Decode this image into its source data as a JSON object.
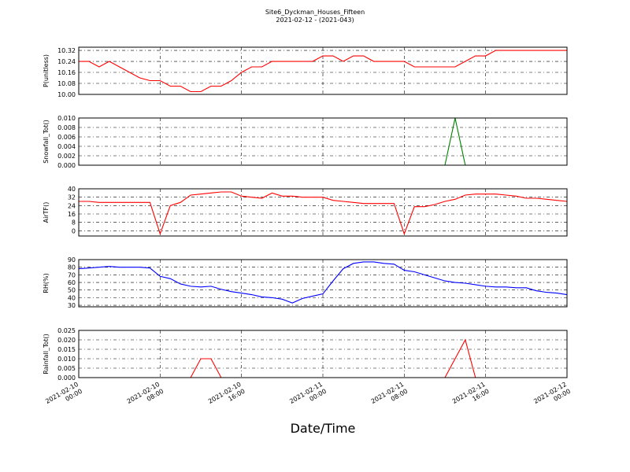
{
  "chart_data": {
    "type": "line",
    "title": "Site6_Dyckman_Houses_Fifteen",
    "subtitle": "2021-02-12 - (2021-043)",
    "xlabel": "Date/Time",
    "grid": true,
    "xlim": [
      "2021-02-10 00:00",
      "2021-02-12 00:00"
    ],
    "xticks": [
      {
        "value": "2021-02-10 00:00",
        "label": "2021-02-10 00:00"
      },
      {
        "value": "2021-02-10 08:00",
        "label": "2021-02-10 08:00"
      },
      {
        "value": "2021-02-10 16:00",
        "label": "2021-02-10 16:00"
      },
      {
        "value": "2021-02-11 00:00",
        "label": "2021-02-11 00:00"
      },
      {
        "value": "2021-02-11 08:00",
        "label": "2021-02-11 08:00"
      },
      {
        "value": "2021-02-11 16:00",
        "label": "2021-02-11 16:00"
      },
      {
        "value": "2021-02-12 00:00",
        "label": "2021-02-12 00:00"
      }
    ],
    "x": [
      "2021-02-10 00:00",
      "2021-02-10 01:00",
      "2021-02-10 02:00",
      "2021-02-10 03:00",
      "2021-02-10 04:00",
      "2021-02-10 05:00",
      "2021-02-10 06:00",
      "2021-02-10 07:00",
      "2021-02-10 08:00",
      "2021-02-10 09:00",
      "2021-02-10 10:00",
      "2021-02-10 11:00",
      "2021-02-10 12:00",
      "2021-02-10 13:00",
      "2021-02-10 14:00",
      "2021-02-10 15:00",
      "2021-02-10 16:00",
      "2021-02-10 17:00",
      "2021-02-10 18:00",
      "2021-02-10 19:00",
      "2021-02-10 20:00",
      "2021-02-10 21:00",
      "2021-02-10 22:00",
      "2021-02-10 23:00",
      "2021-02-11 00:00",
      "2021-02-11 01:00",
      "2021-02-11 02:00",
      "2021-02-11 03:00",
      "2021-02-11 04:00",
      "2021-02-11 05:00",
      "2021-02-11 06:00",
      "2021-02-11 07:00",
      "2021-02-11 08:00",
      "2021-02-11 09:00",
      "2021-02-11 10:00",
      "2021-02-11 11:00",
      "2021-02-11 12:00",
      "2021-02-11 13:00",
      "2021-02-11 14:00",
      "2021-02-11 15:00",
      "2021-02-11 16:00",
      "2021-02-11 17:00",
      "2021-02-11 18:00",
      "2021-02-11 19:00",
      "2021-02-11 20:00",
      "2021-02-11 21:00",
      "2021-02-11 22:00",
      "2021-02-11 23:00",
      "2021-02-12 00:00"
    ],
    "panels": [
      {
        "ylabel": "P(unitless)",
        "ylim": [
          10.0,
          10.343
        ],
        "yticks": [
          {
            "value": 10.0,
            "label": "10.00"
          },
          {
            "value": 10.08,
            "label": "10.08"
          },
          {
            "value": 10.16,
            "label": "10.16"
          },
          {
            "value": 10.24,
            "label": "10.24"
          },
          {
            "value": 10.32,
            "label": "10.32"
          }
        ],
        "series": [
          {
            "color": "#ff0000",
            "values": [
              10.24,
              10.24,
              10.2,
              10.24,
              10.2,
              10.16,
              10.12,
              10.1,
              10.1,
              10.06,
              10.06,
              10.02,
              10.02,
              10.06,
              10.06,
              10.1,
              10.16,
              10.2,
              10.2,
              10.24,
              10.24,
              10.24,
              10.24,
              10.24,
              10.28,
              10.28,
              10.24,
              10.28,
              10.28,
              10.24,
              10.24,
              10.24,
              10.24,
              10.2,
              10.2,
              10.2,
              10.2,
              10.2,
              10.24,
              10.28,
              10.28,
              10.32,
              10.32,
              10.32,
              10.32,
              10.32,
              10.32,
              10.32,
              10.32
            ]
          }
        ]
      },
      {
        "ylabel": "Snowfall_Tot()",
        "ylim": [
          0,
          0.01
        ],
        "yticks": [
          {
            "value": 0,
            "label": "0.000"
          },
          {
            "value": 0.002,
            "label": "0.002"
          },
          {
            "value": 0.004,
            "label": "0.004"
          },
          {
            "value": 0.006,
            "label": "0.006"
          },
          {
            "value": 0.008,
            "label": "0.008"
          },
          {
            "value": 0.01,
            "label": "0.010"
          }
        ],
        "series": [
          {
            "color": "#008000",
            "values": [
              0,
              0,
              0,
              0,
              0,
              0,
              0,
              0,
              0,
              0,
              0,
              0,
              0,
              0,
              0,
              0,
              0,
              0,
              0,
              0,
              0,
              0,
              0,
              0,
              0,
              0,
              0,
              0,
              0,
              0,
              0,
              0,
              0,
              0,
              0,
              0,
              0,
              0.01,
              0,
              0,
              0,
              0,
              0,
              0,
              0,
              0,
              0,
              0,
              0
            ]
          }
        ]
      },
      {
        "ylabel": "AirTF()",
        "ylim": [
          -5,
          40
        ],
        "yticks": [
          0,
          8,
          16,
          24,
          32,
          40
        ],
        "series": [
          {
            "color": "#ff0000",
            "values": [
              28,
              28,
              27,
              27,
              27,
              27,
              27,
              27,
              -3,
              24,
              27,
              34,
              35,
              36,
              37,
              37,
              33,
              32,
              31,
              36,
              33,
              33,
              32,
              32,
              32,
              29,
              28,
              27,
              26,
              26,
              26,
              26,
              -3,
              23,
              23,
              25,
              28,
              30,
              34,
              35,
              35,
              35,
              34,
              33,
              31,
              31,
              30,
              29,
              28
            ]
          }
        ]
      },
      {
        "ylabel": "RH(%)",
        "ylim": [
          28,
          90
        ],
        "yticks": [
          30,
          40,
          50,
          60,
          70,
          80,
          90
        ],
        "series": [
          {
            "color": "#0000ff",
            "values": [
              78,
              79,
              80,
              81,
              80,
              80,
              80,
              79,
              68,
              65,
              58,
              55,
              54,
              55,
              51,
              48,
              46,
              44,
              41,
              40,
              38,
              33,
              39,
              42,
              45,
              62,
              78,
              85,
              87,
              87,
              85,
              84,
              76,
              74,
              70,
              66,
              62,
              60,
              59,
              57,
              55,
              54,
              54,
              53,
              53,
              49,
              47,
              46,
              44
            ]
          }
        ]
      },
      {
        "ylabel": "Rainfall_Tot()",
        "ylim": [
          0,
          0.025
        ],
        "yticks": [
          {
            "value": 0,
            "label": "0.000"
          },
          {
            "value": 0.005,
            "label": "0.005"
          },
          {
            "value": 0.01,
            "label": "0.010"
          },
          {
            "value": 0.015,
            "label": "0.015"
          },
          {
            "value": 0.02,
            "label": "0.020"
          },
          {
            "value": 0.025,
            "label": "0.025"
          }
        ],
        "series": [
          {
            "color": "#ff0000",
            "values": [
              0,
              0,
              0,
              0,
              0,
              0,
              0,
              0,
              0,
              0,
              0,
              0,
              0.01,
              0.01,
              0,
              0,
              0,
              0,
              0,
              0,
              0,
              0,
              0,
              0,
              0,
              0,
              0,
              0,
              0,
              0,
              0,
              0,
              0,
              0,
              0,
              0,
              0,
              0.01,
              0.02,
              0,
              0,
              0,
              0,
              0,
              0,
              0,
              0,
              0,
              0
            ]
          }
        ]
      }
    ]
  }
}
